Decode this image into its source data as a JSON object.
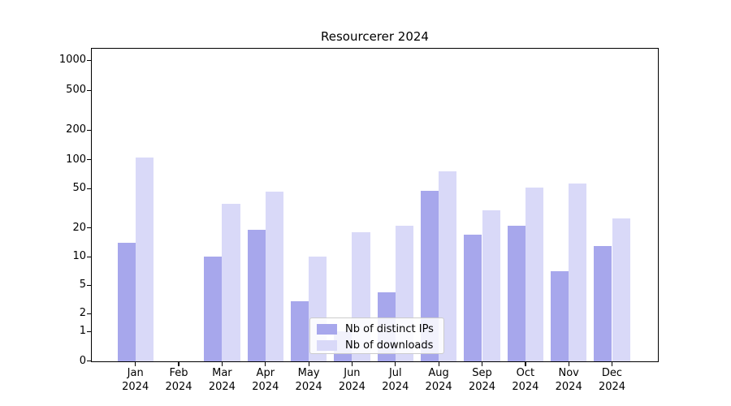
{
  "chart_data": {
    "type": "bar",
    "title": "Resourcerer 2024",
    "categories": [
      "Jan 2024",
      "Feb 2024",
      "Mar 2024",
      "Apr 2024",
      "May 2024",
      "Jun 2024",
      "Jul 2024",
      "Aug 2024",
      "Sep 2024",
      "Oct 2024",
      "Nov 2024",
      "Dec 2024"
    ],
    "series": [
      {
        "name": "Nb of distinct IPs",
        "color": "#a7a7ec",
        "values": [
          14,
          0,
          10,
          19,
          3,
          1,
          4,
          48,
          17,
          21,
          7,
          13
        ]
      },
      {
        "name": "Nb of downloads",
        "color": "#d9d9f8",
        "values": [
          105,
          0,
          35,
          47,
          10,
          18,
          21,
          75,
          30,
          51,
          57,
          25
        ]
      }
    ],
    "yticks": [
      0,
      1,
      2,
      5,
      10,
      20,
      50,
      100,
      200,
      500,
      1000
    ],
    "yscale": "symlog",
    "ylim": [
      0,
      1300
    ],
    "grid": true,
    "legend_position": "lower-center",
    "xlabel": "",
    "ylabel": ""
  },
  "colors": {
    "bar_dark": "#a7a7ec",
    "bar_light": "#d9d9f8",
    "grid_major": "#b2b2b2",
    "grid_mid": "#dcdcdc",
    "grid_minor": "#ededed",
    "legend_border": "#cccccc"
  }
}
